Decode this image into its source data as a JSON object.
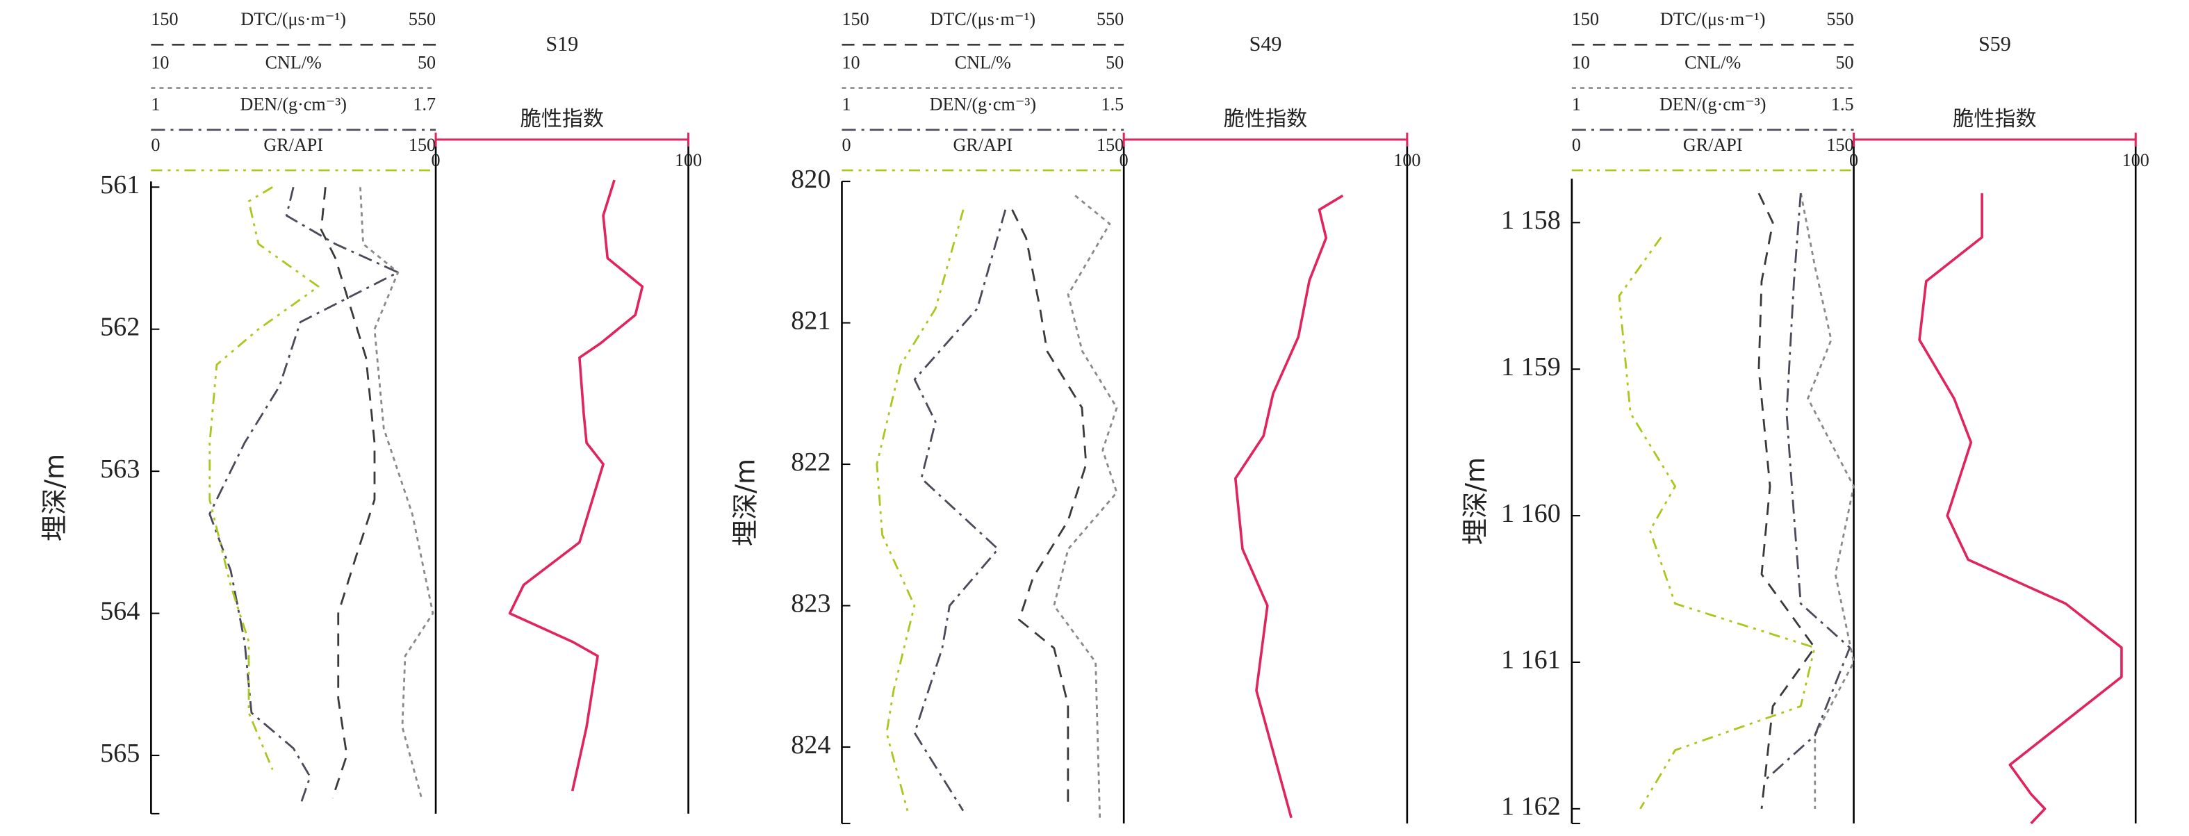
{
  "chart_data": [
    {
      "type": "well-log",
      "title": "S19",
      "y_label": "埋深/m",
      "y_inverted": true,
      "ylim": [
        560.96,
        565.41
      ],
      "yticks": [
        561,
        562,
        563,
        564,
        565
      ],
      "tracks": [
        {
          "series": [
            {
              "name": "DTC/(μs·m⁻¹)",
              "color": "#3a3a3a",
              "dash": "9 6",
              "xlim": [
                150,
                550
              ],
              "xticks": [
                150,
                550
              ],
              "depth": [
                561.0,
                561.3,
                561.5,
                562.2,
                562.8,
                563.2,
                563.6,
                564.0,
                564.6,
                565.0,
                565.3
              ],
              "values": [
                395,
                389,
                409,
                452,
                464,
                464,
                438,
                413,
                413,
                425,
                405
              ]
            },
            {
              "name": "CNL/%",
              "color": "#8a8a8a",
              "dash": "3 3",
              "xlim": [
                10,
                50
              ],
              "xticks": [
                10,
                50
              ],
              "depth": [
                561.0,
                561.4,
                561.6,
                562.0,
                562.7,
                563.3,
                564.0,
                564.3,
                564.8,
                565.3
              ],
              "values": [
                39.4,
                39.8,
                44.7,
                41.4,
                42.7,
                46.7,
                49.6,
                45.7,
                45.3,
                48.0
              ]
            },
            {
              "name": "DEN/(g·cm⁻³)",
              "color": "#4a4a5a",
              "dash": "10 4 2 4",
              "xlim": [
                1,
                1.7
              ],
              "xticks": [
                1,
                1.7
              ],
              "depth": [
                561.0,
                561.2,
                561.4,
                561.6,
                561.95,
                562.4,
                562.8,
                563.3,
                563.7,
                564.2,
                564.7,
                564.95,
                565.15,
                565.35
              ],
              "values": [
                1.35,
                1.333,
                1.453,
                1.607,
                1.367,
                1.316,
                1.23,
                1.144,
                1.196,
                1.23,
                1.247,
                1.35,
                1.391,
                1.367
              ]
            },
            {
              "name": "GR/API",
              "color": "#a8c81e",
              "dash": "8 4 2 4 2 4",
              "xlim": [
                0,
                150
              ],
              "xticks": [
                0,
                150
              ],
              "depth": [
                561.0,
                561.1,
                561.4,
                561.7,
                562.0,
                562.25,
                562.8,
                563.2,
                563.8,
                564.2,
                564.7,
                565.1
              ],
              "values": [
                64,
                51.5,
                56.6,
                88.2,
                56.6,
                34.6,
                30.9,
                30.9,
                41.9,
                51.5,
                51.5,
                64
              ]
            }
          ]
        },
        {
          "series": [
            {
              "name": "脆性指数",
              "color": "#e0245e",
              "dash": "none",
              "xlim": [
                0,
                100
              ],
              "xticks": [
                0,
                100
              ],
              "depth": [
                560.95,
                561.2,
                561.5,
                561.7,
                561.9,
                562.1,
                562.2,
                562.6,
                562.8,
                562.95,
                563.5,
                563.8,
                564.0,
                564.2,
                564.3,
                564.8,
                565.25
              ],
              "values": [
                70.7,
                66.3,
                68,
                81.8,
                79,
                65.2,
                56.9,
                58.6,
                59.7,
                66.3,
                56.9,
                34.8,
                29.3,
                54.1,
                64.1,
                59.7,
                54.1
              ]
            }
          ]
        }
      ]
    },
    {
      "type": "well-log",
      "title": "S49",
      "y_label": "埋深/m",
      "y_inverted": true,
      "ylim": [
        820,
        824.54
      ],
      "yticks": [
        820,
        821,
        822,
        823,
        824
      ],
      "tracks": [
        {
          "series": [
            {
              "name": "DTC/(μs·m⁻¹)",
              "color": "#3a3a3a",
              "dash": "9 6",
              "xlim": [
                150,
                550
              ],
              "xticks": [
                150,
                550
              ],
              "depth": [
                820.2,
                820.4,
                820.9,
                821.2,
                821.6,
                822.0,
                822.4,
                822.8,
                823.1,
                823.3,
                823.7,
                824.4
              ],
              "values": [
                391.6,
                411.4,
                431.2,
                441.1,
                490.6,
                496.5,
                470.8,
                421.3,
                401.5,
                451,
                470.8,
                470.8
              ]
            },
            {
              "name": "CNL/%",
              "color": "#8a8a8a",
              "dash": "3 3",
              "xlim": [
                10,
                50
              ],
              "xticks": [
                10,
                50
              ],
              "depth": [
                820.1,
                820.3,
                820.8,
                821.2,
                821.6,
                821.9,
                822.2,
                822.6,
                823.0,
                823.4,
                824.5
              ],
              "values": [
                43.1,
                48.0,
                42.1,
                44.1,
                49.0,
                47.0,
                49.0,
                42.1,
                40.1,
                46.0,
                46.6
              ]
            },
            {
              "name": "DEN/(g·cm⁻³)",
              "color": "#4a4a5a",
              "dash": "10 4 2 4",
              "xlim": [
                1,
                1.5
              ],
              "xticks": [
                1,
                1.5
              ],
              "depth": [
                820.2,
                820.9,
                821.4,
                821.7,
                822.1,
                822.6,
                823.0,
                823.3,
                823.9,
                824.45
              ],
              "values": [
                1.29,
                1.24,
                1.129,
                1.166,
                1.141,
                1.277,
                1.191,
                1.178,
                1.129,
                1.215
              ]
            },
            {
              "name": "GR/API",
              "color": "#a8c81e",
              "dash": "8 4 2 4 2 4",
              "xlim": [
                0,
                150
              ],
              "xticks": [
                0,
                150
              ],
              "depth": [
                820.2,
                820.9,
                821.3,
                822.0,
                822.5,
                823.0,
                823.6,
                823.9,
                824.45
              ],
              "values": [
                64.6,
                49.8,
                31.2,
                18.6,
                21.5,
                38.6,
                27.5,
                23.8,
                34.9
              ]
            }
          ]
        },
        {
          "series": [
            {
              "name": "脆性指数",
              "color": "#e0245e",
              "dash": "none",
              "xlim": [
                0,
                100
              ],
              "xticks": [
                0,
                100
              ],
              "depth": [
                820.1,
                820.2,
                820.4,
                820.7,
                821.1,
                821.5,
                821.8,
                822.1,
                822.6,
                823.0,
                823.6,
                824.5
              ],
              "values": [
                77.3,
                69,
                71.4,
                65.5,
                61.6,
                52.7,
                49.3,
                39.4,
                41.9,
                50.7,
                46.8,
                59.1
              ]
            }
          ]
        }
      ]
    },
    {
      "type": "well-log",
      "title": "S59",
      "y_label": "埋深/m",
      "y_inverted": true,
      "ylim": [
        1157.7,
        1162.1
      ],
      "yticks": [
        {
          "value": 1158,
          "label": "1 158"
        },
        {
          "value": 1159,
          "label": "1 159"
        },
        {
          "value": 1160,
          "label": "1 160"
        },
        {
          "value": 1161,
          "label": "1 161"
        },
        {
          "value": 1162,
          "label": "1 162"
        }
      ],
      "tracks": [
        {
          "series": [
            {
              "name": "DTC/(μs·m⁻¹)",
              "color": "#3a3a3a",
              "dash": "9 6",
              "xlim": [
                150,
                550
              ],
              "xticks": [
                150,
                550
              ],
              "depth": [
                1157.8,
                1158.0,
                1158.4,
                1159.0,
                1159.8,
                1160.4,
                1160.9,
                1161.3,
                1162.0
              ],
              "values": [
                415.3,
                435.2,
                419.3,
                415.3,
                431.2,
                419.3,
                494.6,
                435.2,
                419.3
              ]
            },
            {
              "name": "CNL/%",
              "color": "#8a8a8a",
              "dash": "3 3",
              "xlim": [
                10,
                50
              ],
              "xticks": [
                10,
                50
              ],
              "depth": [
                1157.8,
                1158.3,
                1158.8,
                1159.2,
                1159.8,
                1160.4,
                1161.0,
                1161.5,
                1162.0
              ],
              "values": [
                42.5,
                44.5,
                46.8,
                43.5,
                50,
                47.4,
                50,
                44.5,
                44.5
              ]
            },
            {
              "name": "DEN/(g·cm⁻³)",
              "color": "#4a4a5a",
              "dash": "10 4 2 4",
              "xlim": [
                1,
                1.5
              ],
              "xticks": [
                1,
                1.5
              ],
              "depth": [
                1157.8,
                1158.4,
                1159.3,
                1160.0,
                1160.6,
                1160.9,
                1161.5,
                1161.8
              ],
              "values": [
                1.406,
                1.394,
                1.381,
                1.394,
                1.406,
                1.493,
                1.431,
                1.344
              ]
            },
            {
              "name": "GR/API",
              "color": "#a8c81e",
              "dash": "8 4 2 4 2 4",
              "xlim": [
                0,
                150
              ],
              "xticks": [
                0,
                150
              ],
              "depth": [
                1158.1,
                1158.5,
                1159.3,
                1159.8,
                1160.1,
                1160.6,
                1160.9,
                1161.3,
                1161.6,
                1162.0
              ],
              "values": [
                47.5,
                25.2,
                31.2,
                55,
                41.6,
                55,
                129.2,
                121.8,
                55,
                36.4
              ]
            }
          ]
        },
        {
          "series": [
            {
              "name": "脆性指数",
              "color": "#e0245e",
              "dash": "none",
              "xlim": [
                0,
                100
              ],
              "xticks": [
                0,
                100
              ],
              "depth": [
                1157.8,
                1158.1,
                1158.4,
                1158.8,
                1159.2,
                1159.5,
                1160.0,
                1160.3,
                1160.6,
                1160.9,
                1161.1,
                1161.4,
                1161.7,
                1161.9,
                1162.0,
                1162.1
              ],
              "values": [
                45.5,
                45.5,
                25.7,
                23.3,
                35.6,
                41.6,
                33.2,
                40.6,
                75.2,
                95,
                95,
                75.2,
                55.4,
                62.9,
                67.8,
                62.9
              ]
            }
          ]
        }
      ]
    }
  ]
}
